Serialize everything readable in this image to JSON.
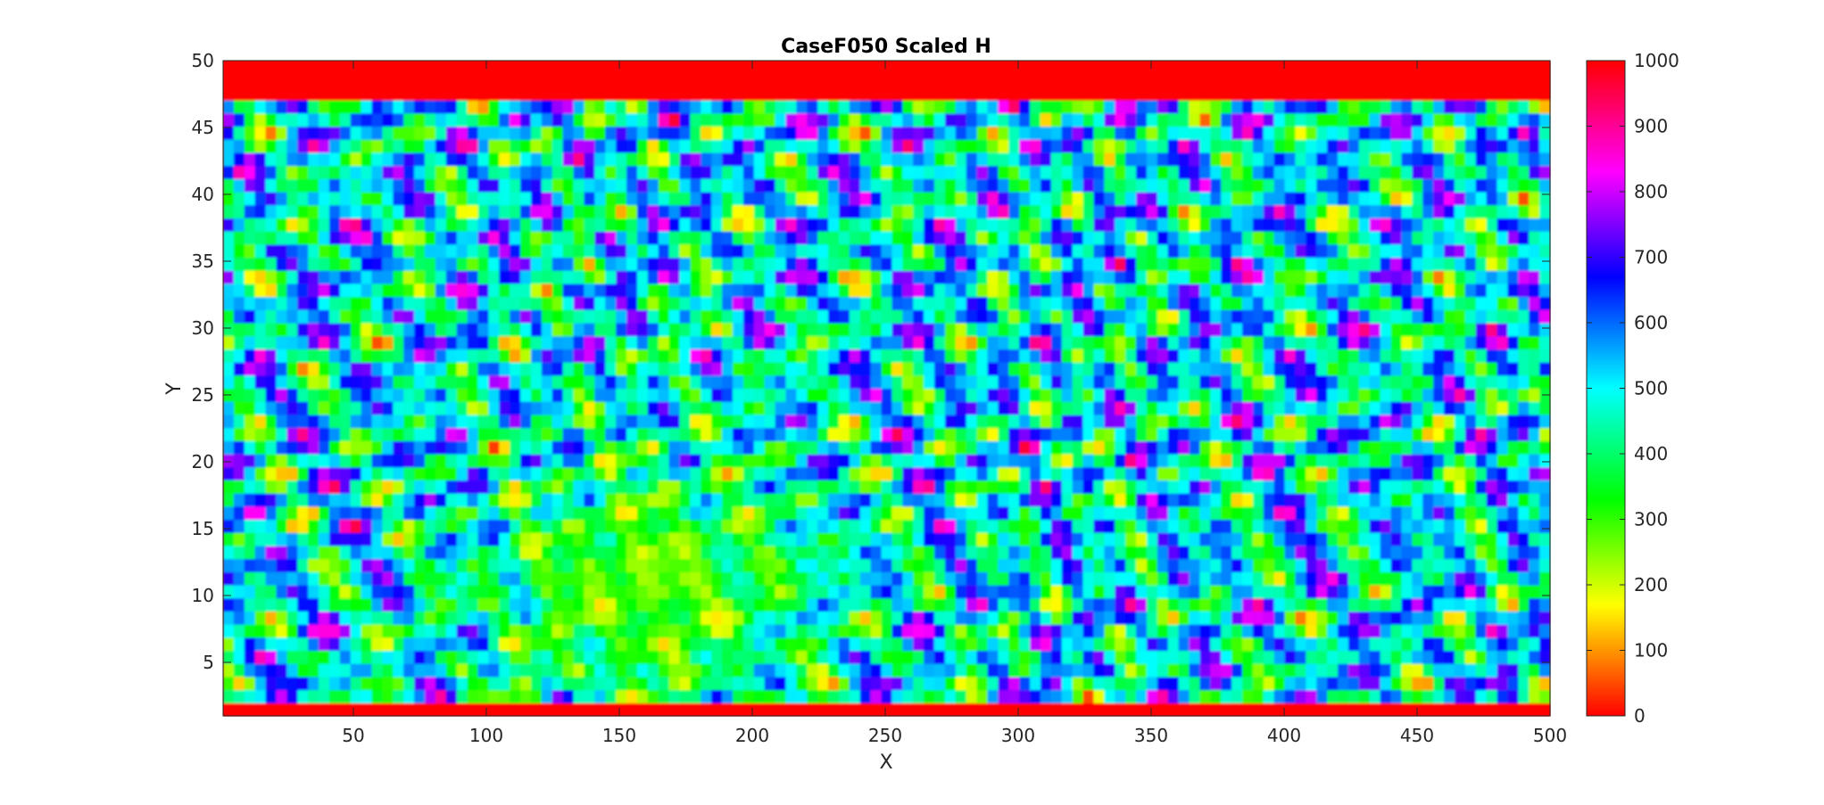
{
  "chart_data": {
    "type": "heatmap",
    "title": "CaseF050 Scaled H",
    "xlabel": "X",
    "ylabel": "Y",
    "xlim": [
      1,
      500
    ],
    "ylim": [
      1,
      50
    ],
    "x_ticks": [
      50,
      100,
      150,
      200,
      250,
      300,
      350,
      400,
      450,
      500
    ],
    "y_ticks": [
      5,
      10,
      15,
      20,
      25,
      30,
      35,
      40,
      45,
      50
    ],
    "colorbar": {
      "range": [
        0,
        1000
      ],
      "ticks": [
        0,
        100,
        200,
        300,
        400,
        500,
        600,
        700,
        800,
        900,
        1000
      ],
      "colormap": "hsv",
      "stops": [
        {
          "value": 0,
          "color": "#ff0000"
        },
        {
          "value": 170,
          "color": "#ffff00"
        },
        {
          "value": 330,
          "color": "#00ff00"
        },
        {
          "value": 500,
          "color": "#00ffff"
        },
        {
          "value": 670,
          "color": "#0000ff"
        },
        {
          "value": 830,
          "color": "#ff00ff"
        },
        {
          "value": 1000,
          "color": "#ff0000"
        }
      ]
    },
    "grid": false,
    "field_description_values": {
      "boundary_rows_value": 0,
      "value_range": [
        0,
        1000
      ]
    }
  }
}
